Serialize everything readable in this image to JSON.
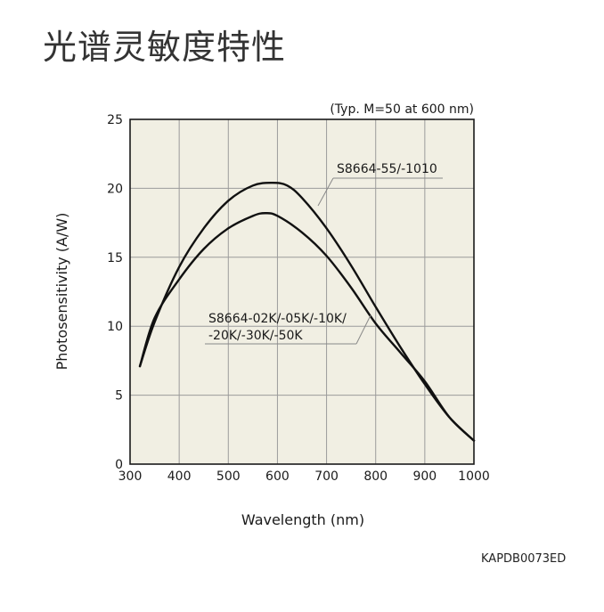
{
  "page": {
    "title": "光谱灵敏度特性",
    "code": "KAPDB0073ED"
  },
  "chart_data": {
    "type": "line",
    "title": "",
    "note": "(Typ. M=50 at 600 nm)",
    "xlabel": "Wavelength (nm)",
    "ylabel": "Photosensitivity (A/W)",
    "xlim": [
      300,
      1000
    ],
    "ylim": [
      0,
      25
    ],
    "xticks": [
      300,
      400,
      500,
      600,
      700,
      800,
      900,
      1000
    ],
    "yticks": [
      0,
      5,
      10,
      15,
      20,
      25
    ],
    "grid": true,
    "legend": "annotations",
    "series": [
      {
        "name": "S8664-55/-1010",
        "x": [
          320,
          350,
          400,
          450,
          500,
          550,
          590,
          620,
          650,
          700,
          750,
          800,
          850,
          900,
          950,
          1000
        ],
        "y": [
          7.1,
          10.3,
          14.3,
          17.1,
          19.1,
          20.2,
          20.4,
          20.2,
          19.3,
          17.1,
          14.4,
          11.4,
          8.5,
          5.8,
          3.4,
          1.7
        ]
      },
      {
        "name": "S8664-02K/-05K/-10K/ -20K/-30K/-50K",
        "lines": [
          "S8664-02K/-05K/-10K/",
          "-20K/-30K/-50K"
        ],
        "x": [
          320,
          350,
          400,
          450,
          500,
          550,
          575,
          600,
          650,
          700,
          750,
          800,
          850,
          900,
          950,
          1000
        ],
        "y": [
          7.1,
          10.6,
          13.4,
          15.6,
          17.1,
          18.0,
          18.2,
          18.0,
          16.8,
          15.1,
          12.8,
          10.2,
          8.1,
          6.0,
          3.4,
          1.7
        ]
      }
    ]
  }
}
